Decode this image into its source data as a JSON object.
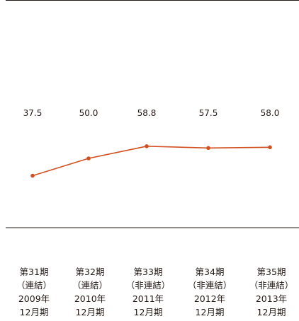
{
  "chart_data": {
    "type": "line",
    "title": "",
    "xlabel": "",
    "ylabel": "",
    "categories": [
      [
        "第31期",
        "（連結）",
        "2009年",
        "12月期"
      ],
      [
        "第32期",
        "（連結）",
        "2010年",
        "12月期"
      ],
      [
        "第33期",
        "（非連結）",
        "2011年",
        "12月期"
      ],
      [
        "第34期",
        "（非連結）",
        "2012年",
        "12月期"
      ],
      [
        "第35期",
        "（非連結）",
        "2013年",
        "12月期"
      ]
    ],
    "series": [
      {
        "values": [
          37.5,
          50.0,
          58.8,
          57.5,
          58.0
        ]
      }
    ],
    "data_labels": [
      "37.5",
      "50.0",
      "58.8",
      "57.5",
      "58.0"
    ],
    "ylim": [
      0,
      100
    ],
    "grid": false,
    "colors": {
      "line": "#d2501f",
      "marker": "#d2501f",
      "axis": "#231815",
      "text": "#231815"
    }
  }
}
